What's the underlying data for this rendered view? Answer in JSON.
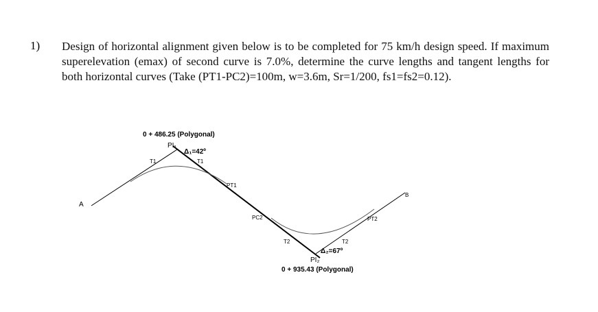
{
  "question": {
    "number": "1)",
    "text": "Design of horizontal alignment given below is to be completed for 75 km/h design speed. If maximum superelevation (emax) of second curve is 7.0%, determine the curve lengths and tangent lengths for both horizontal curves (Take (PT1-PC2)=100m, w=3.6m, Sr=1/200, fs1=fs2=0.12)."
  },
  "diagram": {
    "station_1": "0 + 486.25 (Polygonal)",
    "pi_1": "PI₁",
    "delta_1": "Δ₁=42º",
    "t1_left": "T1",
    "t1_right": "T1",
    "pt_1": "PT1",
    "point_a": "A",
    "point_b": "B",
    "pc_2": "PC2",
    "pt_2": "PT2",
    "t2_left": "T2",
    "t2_right": "T2",
    "delta_2": "Δ₂=67º",
    "pi_2": "PI₂",
    "station_2": "0 + 935.43 (Polygonal)"
  }
}
